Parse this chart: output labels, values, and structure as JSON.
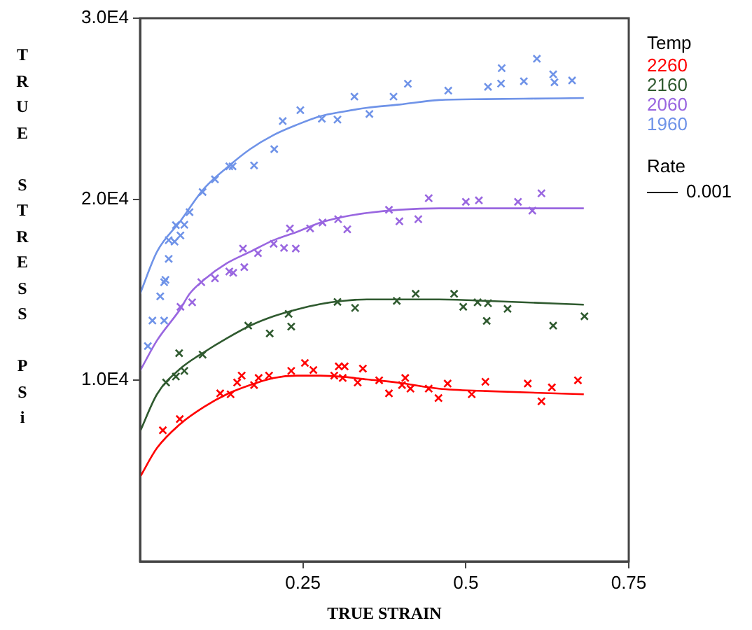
{
  "chart_data": {
    "type": "scatter",
    "xlabel": "TRUE STRAIN",
    "ylabel": "TRUE STRESS PSi",
    "legend_title": "Temp",
    "legend": "right",
    "grid": false,
    "marker": "cross",
    "xlim": [
      0,
      0.75
    ],
    "xticks": [
      0.25,
      0.5,
      0.75
    ],
    "ylim": [
      0,
      30000
    ],
    "yticks": [
      {
        "value": 10000,
        "label": "1.0E4"
      },
      {
        "value": 20000,
        "label": "2.0E4"
      },
      {
        "value": 30000,
        "label": "3.0E4"
      }
    ],
    "annotations": [
      "Rate",
      "0.001"
    ],
    "series": [
      {
        "name": "2260",
        "color": "#ff0000",
        "x": [
          0.035,
          0.061,
          0.123,
          0.139,
          0.149,
          0.156,
          0.175,
          0.182,
          0.198,
          0.232,
          0.253,
          0.266,
          0.298,
          0.305,
          0.314,
          0.311,
          0.334,
          0.342,
          0.367,
          0.382,
          0.402,
          0.407,
          0.415,
          0.443,
          0.458,
          0.472,
          0.509,
          0.53,
          0.595,
          0.616,
          0.632,
          0.672
        ],
        "values": [
          7240,
          7860,
          9280,
          9230,
          9880,
          10260,
          9740,
          10130,
          10260,
          10520,
          10960,
          10570,
          10260,
          10770,
          10770,
          10130,
          9880,
          10650,
          10000,
          9280,
          9740,
          10130,
          9540,
          9540,
          9020,
          9820,
          9230,
          9920,
          9820,
          8840,
          9610,
          10000
        ]
      },
      {
        "name": "2160",
        "color": "#2f5a2f",
        "x": [
          0.04,
          0.055,
          0.068,
          0.06,
          0.096,
          0.166,
          0.199,
          0.228,
          0.232,
          0.303,
          0.33,
          0.394,
          0.423,
          0.482,
          0.496,
          0.518,
          0.534,
          0.532,
          0.564,
          0.634,
          0.682
        ],
        "values": [
          9880,
          10210,
          10520,
          11500,
          11420,
          13020,
          12590,
          13670,
          12970,
          14330,
          14000,
          14390,
          14780,
          14780,
          14060,
          14310,
          14260,
          13280,
          13950,
          13020,
          13540
        ]
      },
      {
        "name": "2060",
        "color": "#9966e0",
        "x": [
          0.062,
          0.08,
          0.094,
          0.115,
          0.137,
          0.143,
          0.16,
          0.158,
          0.181,
          0.205,
          0.221,
          0.239,
          0.23,
          0.261,
          0.28,
          0.304,
          0.318,
          0.382,
          0.398,
          0.427,
          0.443,
          0.5,
          0.52,
          0.58,
          0.602,
          0.616
        ],
        "values": [
          14060,
          14310,
          15420,
          15630,
          16010,
          15940,
          16250,
          17280,
          17020,
          17540,
          17310,
          17280,
          18390,
          18390,
          18720,
          18900,
          18340,
          19420,
          18780,
          18900,
          20060,
          19860,
          19940,
          19860,
          19370,
          20330
        ]
      },
      {
        "name": "1960",
        "color": "#6f93e8",
        "x": [
          0.012,
          0.019,
          0.037,
          0.031,
          0.037,
          0.039,
          0.044,
          0.044,
          0.053,
          0.062,
          0.055,
          0.068,
          0.076,
          0.096,
          0.115,
          0.137,
          0.142,
          0.175,
          0.206,
          0.219,
          0.246,
          0.279,
          0.303,
          0.329,
          0.352,
          0.389,
          0.411,
          0.473,
          0.534,
          0.554,
          0.555,
          0.589,
          0.609,
          0.634,
          0.636,
          0.663
        ],
        "values": [
          11890,
          13300,
          13300,
          14640,
          15420,
          15550,
          16710,
          17740,
          17660,
          18000,
          18570,
          18590,
          19290,
          20400,
          21100,
          21820,
          21820,
          21870,
          22770,
          24320,
          24920,
          24450,
          24400,
          25670,
          24710,
          25670,
          26380,
          26000,
          26210,
          26390,
          27240,
          26520,
          27760,
          26900,
          26460,
          26560
        ]
      },
      {
        "type": "line",
        "marker": "none",
        "color": "#ff0000",
        "x": [
          0,
          0.026,
          0.062,
          0.098,
          0.133,
          0.169,
          0.205,
          0.241,
          0.276,
          0.312,
          0.348,
          0.395,
          0.459,
          0.53,
          0.681
        ],
        "values": [
          4660,
          6260,
          7600,
          8530,
          9230,
          9740,
          10130,
          10260,
          10260,
          10190,
          10050,
          9880,
          9540,
          9410,
          9230
        ]
      },
      {
        "type": "line",
        "marker": "none",
        "color": "#2f5a2f",
        "x": [
          0,
          0.026,
          0.062,
          0.098,
          0.133,
          0.169,
          0.205,
          0.241,
          0.276,
          0.312,
          0.348,
          0.395,
          0.459,
          0.53,
          0.681
        ],
        "values": [
          7170,
          9230,
          10650,
          11550,
          12320,
          13020,
          13540,
          13920,
          14210,
          14390,
          14470,
          14470,
          14470,
          14390,
          14180
        ]
      },
      {
        "type": "line",
        "marker": "none",
        "color": "#9966e0",
        "x": [
          0,
          0.026,
          0.062,
          0.076,
          0.098,
          0.133,
          0.169,
          0.205,
          0.241,
          0.276,
          0.312,
          0.348,
          0.398,
          0.459,
          0.681
        ],
        "values": [
          10520,
          12200,
          13950,
          14780,
          15550,
          16460,
          17100,
          17740,
          18200,
          18700,
          19030,
          19240,
          19420,
          19500,
          19500
        ]
      },
      {
        "type": "line",
        "marker": "none",
        "color": "#6f93e8",
        "x": [
          0,
          0.026,
          0.062,
          0.098,
          0.133,
          0.169,
          0.205,
          0.241,
          0.276,
          0.312,
          0.348,
          0.398,
          0.459,
          0.53,
          0.602,
          0.681
        ],
        "values": [
          14770,
          17100,
          18800,
          20580,
          21740,
          22770,
          23550,
          24120,
          24580,
          24840,
          25050,
          25230,
          25480,
          25530,
          25560,
          25590
        ]
      }
    ]
  }
}
